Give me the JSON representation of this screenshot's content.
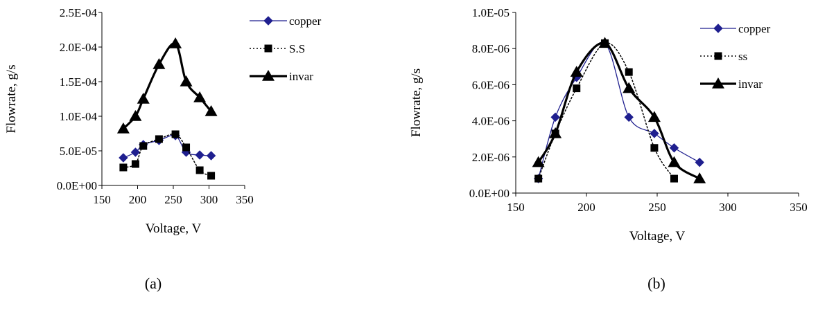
{
  "chart_data": [
    {
      "panel": "(a)",
      "type": "line",
      "xlabel": "Voltage, V",
      "ylabel": "Flowrate, g/s",
      "xlim": [
        150,
        350
      ],
      "ylim": [
        0,
        0.00025
      ],
      "xticks": [
        150,
        200,
        250,
        300,
        350
      ],
      "xtick_labels": [
        "150",
        "200",
        "250",
        "300",
        "350"
      ],
      "yticks": [
        0,
        5e-05,
        0.0001,
        0.00015,
        0.0002,
        0.00025
      ],
      "ytick_labels": [
        "0.0E+00",
        "5.0E-05",
        "1.0E-04",
        "1.5E-04",
        "2.0E-04",
        "2.5E-04"
      ],
      "grid": false,
      "legend_position": "top-right",
      "series": [
        {
          "name": "copper",
          "marker": "diamond",
          "color": "#1f1f8f",
          "line": "solid-thin",
          "x": [
            180,
            197,
            208,
            230,
            253,
            268,
            287,
            303
          ],
          "y": [
            4e-05,
            4.8e-05,
            5.9e-05,
            6.5e-05,
            7.2e-05,
            4.8e-05,
            4.4e-05,
            4.3e-05
          ]
        },
        {
          "name": "S.S",
          "marker": "square",
          "color": "#000000",
          "line": "dotted",
          "x": [
            180,
            197,
            208,
            230,
            253,
            268,
            287,
            303
          ],
          "y": [
            2.6e-05,
            3.1e-05,
            5.7e-05,
            6.7e-05,
            7.4e-05,
            5.5e-05,
            2.2e-05,
            1.4e-05
          ]
        },
        {
          "name": "invar",
          "marker": "triangle",
          "color": "#000000",
          "line": "solid-thick",
          "x": [
            180,
            197,
            208,
            230,
            253,
            268,
            287,
            303
          ],
          "y": [
            8.2e-05,
            0.0001,
            0.000125,
            0.000175,
            0.000205,
            0.00015,
            0.000127,
            0.000107
          ]
        }
      ]
    },
    {
      "panel": "(b)",
      "type": "line",
      "xlabel": "Voltage, V",
      "ylabel": "Flowrate, g/s",
      "xlim": [
        150,
        350
      ],
      "ylim": [
        0,
        1e-05
      ],
      "xticks": [
        150,
        200,
        250,
        300,
        350
      ],
      "xtick_labels": [
        "150",
        "200",
        "250",
        "300",
        "350"
      ],
      "yticks": [
        0,
        2e-06,
        4e-06,
        6e-06,
        8e-06,
        1e-05
      ],
      "ytick_labels": [
        "0.0E+00",
        "2.0E-06",
        "4.0E-06",
        "6.0E-06",
        "8.0E-06",
        "1.0E-05"
      ],
      "grid": false,
      "legend_position": "top-right",
      "series": [
        {
          "name": "copper",
          "marker": "diamond",
          "color": "#1f1f8f",
          "line": "solid-thin",
          "x": [
            166,
            178,
            193,
            213,
            230,
            248,
            262,
            280
          ],
          "y": [
            8e-07,
            4.2e-06,
            6.4e-06,
            8.3e-06,
            4.2e-06,
            3.3e-06,
            2.5e-06,
            1.7e-06
          ]
        },
        {
          "name": "ss",
          "marker": "square",
          "color": "#000000",
          "line": "dotted",
          "x": [
            166,
            178,
            193,
            213,
            230,
            248,
            262
          ],
          "y": [
            8e-07,
            3.3e-06,
            5.8e-06,
            8.3e-06,
            6.7e-06,
            2.5e-06,
            8e-07
          ]
        },
        {
          "name": "invar",
          "marker": "triangle",
          "color": "#000000",
          "line": "solid-thick",
          "x": [
            166,
            178,
            193,
            213,
            230,
            248,
            262,
            280
          ],
          "y": [
            1.7e-06,
            3.3e-06,
            6.7e-06,
            8.3e-06,
            5.8e-06,
            4.2e-06,
            1.7e-06,
            8e-07
          ]
        }
      ]
    }
  ]
}
